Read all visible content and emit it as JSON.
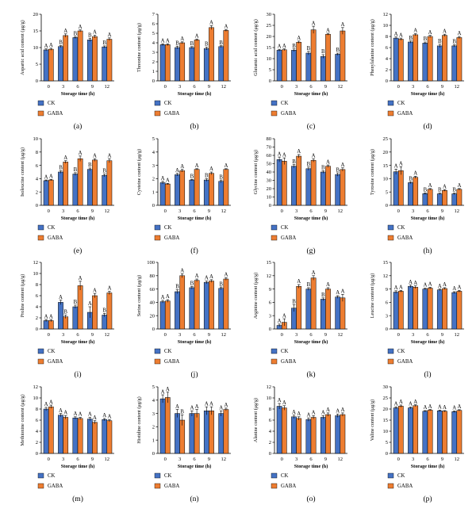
{
  "x_label": "Storage time (h)",
  "legend": [
    "CK",
    "GABA"
  ],
  "colors": {
    "CK": "#4472c4",
    "GABA": "#ed7d31"
  },
  "chart_data": [
    {
      "type": "bar",
      "panel": "(a)",
      "ylabel": "Aspartic acid content (μg/g)",
      "ylim": [
        0,
        20
      ],
      "yticks": [
        0,
        5,
        10,
        15,
        20
      ],
      "categories": [
        "0",
        "3",
        "6",
        "9",
        "12"
      ],
      "series": [
        {
          "name": "CK",
          "values": [
            9.3,
            10.3,
            13.0,
            12.3,
            10.2
          ],
          "err": [
            0.3,
            0.3,
            0.3,
            0.5,
            0.3
          ],
          "letters": [
            "A",
            "B",
            "B",
            "B",
            "B"
          ]
        },
        {
          "name": "GABA",
          "values": [
            9.5,
            13.6,
            15.0,
            13.3,
            12.5
          ],
          "err": [
            0.3,
            0.5,
            0.3,
            0.4,
            0.4
          ],
          "letters": [
            "A",
            "A",
            "A",
            "A",
            "A"
          ]
        }
      ]
    },
    {
      "type": "bar",
      "panel": "(b)",
      "ylabel": "Threonine content (μg/g)",
      "ylim": [
        0,
        7
      ],
      "yticks": [
        0,
        1,
        2,
        3,
        4,
        5,
        6,
        7
      ],
      "categories": [
        "0",
        "3",
        "6",
        "9",
        "12"
      ],
      "series": [
        {
          "name": "CK",
          "values": [
            3.8,
            3.5,
            3.5,
            3.4,
            3.6
          ],
          "err": [
            0.1,
            0.15,
            0.1,
            0.15,
            0.1
          ],
          "letters": [
            "A",
            "B",
            "B",
            "B",
            "B"
          ]
        },
        {
          "name": "GABA",
          "values": [
            3.8,
            4.0,
            4.3,
            5.6,
            5.3
          ],
          "err": [
            0.1,
            0.1,
            0.1,
            0.2,
            0.1
          ],
          "letters": [
            "A",
            "A",
            "A",
            "A",
            "A"
          ]
        }
      ]
    },
    {
      "type": "bar",
      "panel": "(c)",
      "ylabel": "Glutamic acid content (μg/g)",
      "ylim": [
        0,
        30
      ],
      "yticks": [
        0,
        5,
        10,
        15,
        20,
        25,
        30
      ],
      "categories": [
        "0",
        "3",
        "6",
        "9",
        "12"
      ],
      "series": [
        {
          "name": "CK",
          "values": [
            13.8,
            13.8,
            12.5,
            11.0,
            12.0
          ],
          "err": [
            0.4,
            0.6,
            0.8,
            0.8,
            0.5
          ],
          "letters": [
            "A",
            "B",
            "B",
            "B",
            "B"
          ]
        },
        {
          "name": "GABA",
          "values": [
            14.0,
            17.4,
            23.0,
            21.0,
            22.5
          ],
          "err": [
            0.4,
            0.5,
            1.6,
            0.4,
            1.5
          ],
          "letters": [
            "A",
            "A",
            "A",
            "A",
            "A"
          ]
        }
      ]
    },
    {
      "type": "bar",
      "panel": "(d)",
      "ylabel": "Phenylalanine content (μg/g)",
      "ylim": [
        0,
        12
      ],
      "yticks": [
        0,
        2,
        4,
        6,
        8,
        10,
        12
      ],
      "categories": [
        "0",
        "3",
        "6",
        "9",
        "12"
      ],
      "series": [
        {
          "name": "CK",
          "values": [
            7.7,
            7.0,
            6.8,
            6.3,
            6.3
          ],
          "err": [
            0.2,
            0.2,
            0.2,
            0.3,
            0.2
          ],
          "letters": [
            "A",
            "B",
            "B",
            "B",
            "B"
          ]
        },
        {
          "name": "GABA",
          "values": [
            7.5,
            8.3,
            8.0,
            8.2,
            7.8
          ],
          "err": [
            0.2,
            0.2,
            0.2,
            0.2,
            0.2
          ],
          "letters": [
            "A",
            "A",
            "A",
            "A",
            "A"
          ]
        }
      ]
    },
    {
      "type": "bar",
      "panel": "(e)",
      "ylabel": "Isoleucine content (μg/g)",
      "ylim": [
        0,
        10
      ],
      "yticks": [
        0,
        2,
        4,
        6,
        8,
        10
      ],
      "categories": [
        "0",
        "3",
        "6",
        "9",
        "12"
      ],
      "series": [
        {
          "name": "CK",
          "values": [
            3.7,
            5.0,
            4.7,
            5.4,
            4.5
          ],
          "err": [
            0.1,
            0.2,
            0.2,
            0.2,
            0.2
          ],
          "letters": [
            "A",
            "B",
            "B",
            "B",
            "B"
          ]
        },
        {
          "name": "GABA",
          "values": [
            3.8,
            6.5,
            7.0,
            6.8,
            6.7
          ],
          "err": [
            0.1,
            0.2,
            0.4,
            0.2,
            0.3
          ],
          "letters": [
            "A",
            "A",
            "A",
            "A",
            "A"
          ]
        }
      ]
    },
    {
      "type": "bar",
      "panel": "(f)",
      "ylabel": "Cysteine content (μg/g)",
      "ylim": [
        0,
        5
      ],
      "yticks": [
        0,
        1,
        2,
        3,
        4,
        5
      ],
      "categories": [
        "0",
        "3",
        "6",
        "9",
        "12"
      ],
      "series": [
        {
          "name": "CK",
          "values": [
            1.7,
            2.3,
            1.9,
            1.9,
            1.8
          ],
          "err": [
            0.1,
            0.1,
            0.05,
            0.1,
            0.1
          ],
          "letters": [
            "A",
            "A",
            "B",
            "B",
            "B"
          ]
        },
        {
          "name": "GABA",
          "values": [
            1.6,
            2.6,
            2.7,
            2.4,
            2.7
          ],
          "err": [
            0.05,
            0.1,
            0.05,
            0.1,
            0.05
          ],
          "letters": [
            "A",
            "A",
            "A",
            "A",
            "A"
          ]
        }
      ]
    },
    {
      "type": "bar",
      "panel": "(g)",
      "ylabel": "Glycine content (μg/g)",
      "ylim": [
        0,
        80
      ],
      "yticks": [
        0,
        10,
        20,
        30,
        40,
        50,
        60,
        70,
        80
      ],
      "categories": [
        "0",
        "3",
        "6",
        "9",
        "12"
      ],
      "series": [
        {
          "name": "CK",
          "values": [
            55,
            47,
            44,
            40,
            37
          ],
          "err": [
            3,
            2,
            2,
            1.5,
            2
          ],
          "letters": [
            "A",
            "B",
            "B",
            "B",
            "B"
          ]
        },
        {
          "name": "GABA",
          "values": [
            53,
            59,
            54,
            47,
            43
          ],
          "err": [
            4,
            2,
            2,
            1.5,
            2
          ],
          "letters": [
            "A",
            "A",
            "A",
            "A",
            "A"
          ]
        }
      ]
    },
    {
      "type": "bar",
      "panel": "(h)",
      "ylabel": "Tyrosine content (μg/g)",
      "ylim": [
        0,
        25
      ],
      "yticks": [
        0,
        5,
        10,
        15,
        20,
        25
      ],
      "categories": [
        "0",
        "3",
        "6",
        "9",
        "12"
      ],
      "series": [
        {
          "name": "CK",
          "values": [
            12.6,
            8.5,
            4.4,
            4.3,
            4.3
          ],
          "err": [
            1.0,
            0.4,
            0.3,
            0.3,
            0.3
          ],
          "letters": [
            "A",
            "B",
            "B",
            "B",
            "B"
          ]
        },
        {
          "name": "GABA",
          "values": [
            13.0,
            10.5,
            6.0,
            5.6,
            6.0
          ],
          "err": [
            1.5,
            0.4,
            0.3,
            0.3,
            0.3
          ],
          "letters": [
            "A",
            "A",
            "A",
            "A",
            "A"
          ]
        }
      ]
    },
    {
      "type": "bar",
      "panel": "(i)",
      "ylabel": "Proline content (μg/g)",
      "ylim": [
        0,
        12
      ],
      "yticks": [
        0,
        2,
        4,
        6,
        8,
        10,
        12
      ],
      "categories": [
        "0",
        "3",
        "6",
        "9",
        "12"
      ],
      "series": [
        {
          "name": "CK",
          "values": [
            1.5,
            4.8,
            4.0,
            3.0,
            2.5
          ],
          "err": [
            0.2,
            0.4,
            0.3,
            1.0,
            0.3
          ],
          "letters": [
            "A",
            "A",
            "B",
            "A",
            "B"
          ]
        },
        {
          "name": "GABA",
          "values": [
            1.5,
            2.2,
            7.8,
            6.0,
            6.5
          ],
          "err": [
            0.2,
            0.3,
            0.8,
            0.4,
            0.3
          ],
          "letters": [
            "A",
            "B",
            "A",
            "A",
            "A"
          ]
        }
      ]
    },
    {
      "type": "bar",
      "panel": "(j)",
      "ylabel": "Serine content (μg/g)",
      "ylim": [
        0,
        100
      ],
      "yticks": [
        0,
        20,
        40,
        60,
        80,
        100
      ],
      "categories": [
        "0",
        "3",
        "6",
        "9",
        "12"
      ],
      "series": [
        {
          "name": "CK",
          "values": [
            41,
            56,
            62,
            70,
            61
          ],
          "err": [
            2,
            3,
            2,
            2,
            2
          ],
          "letters": [
            "A",
            "B",
            "B",
            "A",
            "B"
          ]
        },
        {
          "name": "GABA",
          "values": [
            42,
            80,
            73,
            72,
            75
          ],
          "err": [
            2,
            3,
            2,
            2,
            2
          ],
          "letters": [
            "A",
            "A",
            "A",
            "A",
            "A"
          ]
        }
      ]
    },
    {
      "type": "bar",
      "panel": "(k)",
      "ylabel": "Arginine content (μg/g)",
      "ylim": [
        0,
        15
      ],
      "yticks": [
        0,
        3,
        6,
        9,
        12,
        15
      ],
      "categories": [
        "0",
        "3",
        "6",
        "9",
        "12"
      ],
      "series": [
        {
          "name": "CK",
          "values": [
            0.8,
            4.7,
            9.0,
            6.7,
            7.2
          ],
          "err": [
            0.3,
            0.8,
            0.3,
            0.3,
            0.3
          ],
          "letters": [
            "A",
            "B",
            "B",
            "B",
            "A"
          ]
        },
        {
          "name": "GABA",
          "values": [
            1.5,
            9.6,
            11.5,
            9.0,
            7.0
          ],
          "err": [
            0.8,
            0.4,
            0.5,
            0.3,
            0.8
          ],
          "letters": [
            "A",
            "A",
            "A",
            "A",
            "A"
          ]
        }
      ]
    },
    {
      "type": "bar",
      "panel": "(l)",
      "ylabel": "Leucine content (μg/g)",
      "ylim": [
        0,
        15
      ],
      "yticks": [
        0,
        3,
        6,
        9,
        12,
        15
      ],
      "categories": [
        "0",
        "3",
        "6",
        "9",
        "12"
      ],
      "series": [
        {
          "name": "CK",
          "values": [
            8.3,
            9.6,
            9.0,
            8.8,
            8.2
          ],
          "err": [
            0.3,
            0.3,
            0.2,
            0.2,
            0.2
          ],
          "letters": [
            "A",
            "A",
            "A",
            "A",
            "A"
          ]
        },
        {
          "name": "GABA",
          "values": [
            8.5,
            9.4,
            9.2,
            9.1,
            8.5
          ],
          "err": [
            0.2,
            0.3,
            0.2,
            0.2,
            0.2
          ],
          "letters": [
            "A",
            "A",
            "A",
            "A",
            "A"
          ]
        }
      ]
    },
    {
      "type": "bar",
      "panel": "(m)",
      "ylabel": "Methionine content (μg/g)",
      "ylim": [
        0,
        12
      ],
      "yticks": [
        0,
        2,
        4,
        6,
        8,
        10,
        12
      ],
      "categories": [
        "0",
        "3",
        "6",
        "9",
        "12"
      ],
      "series": [
        {
          "name": "CK",
          "values": [
            8.0,
            6.9,
            6.4,
            6.2,
            6.1
          ],
          "err": [
            0.3,
            0.3,
            0.2,
            0.3,
            0.2
          ],
          "letters": [
            "A",
            "A",
            "A",
            "A",
            "A"
          ]
        },
        {
          "name": "GABA",
          "values": [
            8.4,
            6.5,
            6.3,
            5.6,
            5.9
          ],
          "err": [
            0.3,
            0.3,
            0.2,
            0.3,
            0.2
          ],
          "letters": [
            "A",
            "A",
            "A",
            "A",
            "A"
          ]
        }
      ]
    },
    {
      "type": "bar",
      "panel": "(n)",
      "ylabel": "Histidine content (μg/g)",
      "ylim": [
        0,
        5
      ],
      "yticks": [
        0,
        1,
        2,
        3,
        4,
        5
      ],
      "categories": [
        "0",
        "3",
        "6",
        "9",
        "12"
      ],
      "series": [
        {
          "name": "CK",
          "values": [
            4.1,
            3.0,
            3.0,
            3.2,
            3.0
          ],
          "err": [
            0.3,
            0.3,
            0.2,
            0.3,
            0.2
          ],
          "letters": [
            "A",
            "A",
            "A",
            "A",
            "A"
          ]
        },
        {
          "name": "GABA",
          "values": [
            4.2,
            2.5,
            3.0,
            3.2,
            3.3
          ],
          "err": [
            0.4,
            0.4,
            0.3,
            0.3,
            0.1
          ],
          "letters": [
            "A",
            "B",
            "A",
            "A",
            "A"
          ]
        }
      ]
    },
    {
      "type": "bar",
      "panel": "(o)",
      "ylabel": "Alanine content (μg/g)",
      "ylim": [
        0,
        12
      ],
      "yticks": [
        0,
        2,
        4,
        6,
        8,
        10,
        12
      ],
      "categories": [
        "0",
        "3",
        "6",
        "9",
        "12"
      ],
      "series": [
        {
          "name": "CK",
          "values": [
            8.5,
            6.6,
            6.1,
            6.5,
            6.8
          ],
          "err": [
            0.5,
            0.3,
            0.3,
            0.3,
            0.3
          ],
          "letters": [
            "A",
            "A",
            "A",
            "A",
            "A"
          ]
        },
        {
          "name": "GABA",
          "values": [
            8.2,
            6.3,
            6.5,
            7.0,
            7.0
          ],
          "err": [
            0.4,
            0.3,
            0.3,
            0.3,
            0.3
          ],
          "letters": [
            "A",
            "A",
            "A",
            "A",
            "A"
          ]
        }
      ]
    },
    {
      "type": "bar",
      "panel": "(p)",
      "ylabel": "Valine content (μg/g)",
      "ylim": [
        0,
        30
      ],
      "yticks": [
        0,
        5,
        10,
        15,
        20,
        25,
        30
      ],
      "categories": [
        "0",
        "3",
        "6",
        "9",
        "12"
      ],
      "series": [
        {
          "name": "CK",
          "values": [
            20.5,
            20.5,
            19.0,
            19.2,
            18.8
          ],
          "err": [
            0.5,
            0.4,
            0.3,
            0.3,
            0.3
          ],
          "letters": [
            "A",
            "A",
            "A",
            "A",
            "A"
          ]
        },
        {
          "name": "GABA",
          "values": [
            21.3,
            21.5,
            19.5,
            19.0,
            19.4
          ],
          "err": [
            0.5,
            0.4,
            0.3,
            0.3,
            0.3
          ],
          "letters": [
            "A",
            "A",
            "A",
            "A",
            "A"
          ]
        }
      ]
    }
  ]
}
